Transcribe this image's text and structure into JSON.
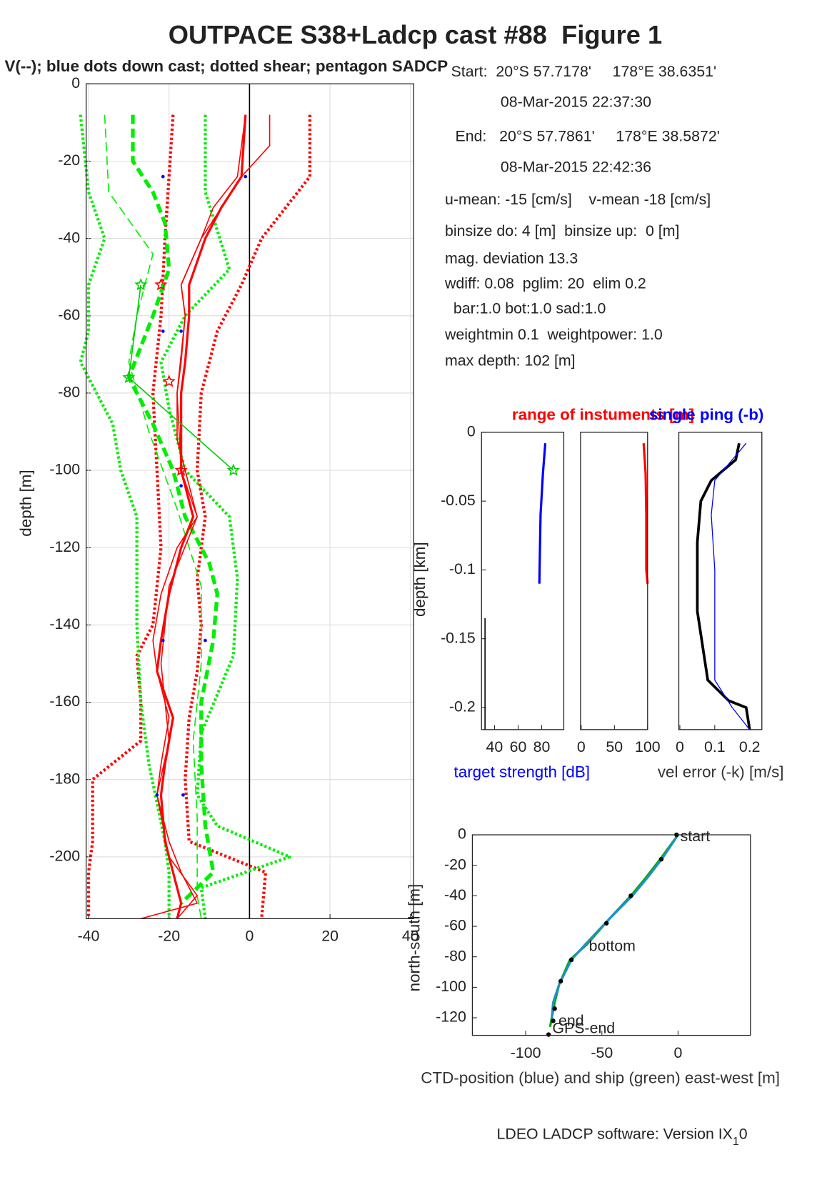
{
  "title": "OUTPACE S38+Ladcp cast #88  Figure 1",
  "subtitle": "V(--); blue dots down cast; dotted shear; pentagon SADCP",
  "info": [
    "Start:  20°S 57.7178'     178°E 38.6351'",
    "08-Mar-2015 22:37:30",
    " End:   20°S 57.7861'     178°E 38.5872'",
    "08-Mar-2015 22:42:36",
    "u-mean: -15 [cm/s]    v-mean -18 [cm/s]",
    "binsize do: 4 [m]  binsize up:  0 [m]",
    "mag. deviation 13.3",
    "wdiff: 0.08  pglim: 20  elim 0.2",
    "  bar:1.0 bot:1.0 sad:1.0",
    "weightmin 0.1  weightpower: 1.0",
    "max depth: 102 [m]"
  ],
  "footer": {
    "text": "LDEO LADCP software: Version IX",
    "sub": "1",
    "tail": "0"
  },
  "chart_data": [
    {
      "type": "line",
      "ylabel": "depth [m]",
      "xlim": [
        -40.6,
        40.8
      ],
      "ylim": [
        -216,
        0
      ],
      "xticks": [
        -40,
        -20,
        0,
        20,
        40
      ],
      "yticks": [
        0,
        -20,
        -40,
        -60,
        -80,
        -100,
        -120,
        -140,
        -160,
        -180,
        -200
      ],
      "grid": true,
      "vline": 0,
      "series": [
        {
          "color": "#ff0000",
          "style": "dotted",
          "width": 4,
          "y": [
            -8,
            -24,
            -40,
            -52,
            -64,
            -80,
            -100,
            -112,
            -128,
            -140,
            -152,
            -164,
            -180,
            -196,
            -204,
            -216
          ],
          "x": [
            15,
            15,
            3,
            -2,
            -8,
            -12,
            -13,
            -11,
            -13,
            -12,
            -13,
            -15,
            -16,
            -15,
            4,
            3
          ]
        },
        {
          "color": "#ff0000",
          "style": "dotted",
          "width": 4,
          "y": [
            -8,
            -40,
            -60,
            -80,
            -100,
            -120,
            -140,
            -148,
            -160,
            -170,
            -180,
            -196,
            -204,
            -216
          ],
          "x": [
            -19,
            -21,
            -22,
            -24,
            -23,
            -22,
            -24,
            -28,
            -27,
            -27,
            -39,
            -39,
            -40,
            -40
          ]
        },
        {
          "color": "#00ee00",
          "style": "dotted",
          "width": 4,
          "y": [
            -8,
            -28,
            -40,
            -52,
            -64,
            -72,
            -88,
            -100,
            -112,
            -124,
            -140,
            -160,
            -176,
            -196,
            -204,
            -216
          ],
          "x": [
            -42,
            -40,
            -36,
            -40,
            -40,
            -42,
            -34,
            -32,
            -28,
            -28,
            -28,
            -27,
            -25,
            -21,
            -20,
            -20
          ]
        },
        {
          "color": "#00ee00",
          "style": "dotted",
          "width": 4,
          "y": [
            -8,
            -28,
            -48,
            -60,
            -72,
            -84,
            -100,
            -112,
            -128,
            -148,
            -168,
            -184,
            -192,
            -200,
            -208,
            -216
          ],
          "x": [
            -11,
            -11,
            -5,
            -16,
            -22,
            -20,
            -16,
            -5,
            -3,
            -4,
            -12,
            -13,
            -8,
            10,
            -12,
            -11
          ]
        },
        {
          "color": "#00ee00",
          "style": "dashed",
          "width": 5,
          "y": [
            -8,
            -20,
            -28,
            -36,
            -48,
            -60,
            -76,
            -88,
            -100,
            -112,
            -124,
            -132,
            -144,
            -160,
            -176,
            -192,
            -204,
            -212
          ],
          "x": [
            -29,
            -29,
            -24,
            -21,
            -20,
            -24,
            -30,
            -24,
            -19,
            -16,
            -10,
            -8,
            -9,
            -12,
            -12,
            -11,
            -9,
            -17
          ]
        },
        {
          "color": "#00ee00",
          "style": "dashed",
          "width": 1.5,
          "y": [
            -8,
            -28,
            -44,
            -60,
            -72,
            -90,
            -110,
            -130,
            -150,
            -170,
            -190,
            -210,
            -216
          ],
          "x": [
            -36,
            -35,
            -24,
            -28,
            -30,
            -25,
            -18,
            -12,
            -12,
            -14,
            -13,
            -13,
            -12
          ]
        },
        {
          "color": "#ff0000",
          "style": "solid",
          "width": 3,
          "y": [
            -8,
            -24,
            -32,
            -40,
            -52,
            -60,
            -72,
            -80,
            -92,
            -100,
            -112,
            -120,
            -132,
            -144,
            -152,
            -164,
            -176,
            -184,
            -196,
            -204,
            -212,
            -216
          ],
          "x": [
            -1,
            -2,
            -7,
            -11,
            -15,
            -15,
            -16,
            -17,
            -17,
            -17,
            -14,
            -17,
            -20,
            -22,
            -23,
            -19,
            -21,
            -22,
            -21,
            -19,
            -17,
            -18
          ]
        },
        {
          "color": "#ff0000",
          "style": "solid",
          "width": 1.5,
          "y": [
            -8,
            -24,
            -32,
            -40,
            -52,
            -60,
            -72,
            -80,
            -92,
            -100,
            -112,
            -120,
            -132,
            -144,
            -152,
            -164,
            -176,
            -184,
            -196,
            -204,
            -212,
            -216
          ],
          "x": [
            -1,
            -3,
            -9,
            -12,
            -17,
            -16,
            -17,
            -18,
            -18,
            -16,
            -13,
            -18,
            -22,
            -24,
            -23,
            -20,
            -22,
            -23,
            -20,
            -17,
            -13,
            -27
          ]
        },
        {
          "color": "#ff0000",
          "style": "solid",
          "width": 1.5,
          "y": [
            -8,
            -16,
            -24,
            -40,
            -52,
            -60,
            -80,
            -100,
            -112,
            -130,
            -150,
            -170,
            -184,
            -200,
            -210,
            -216
          ],
          "x": [
            5,
            5,
            -2,
            -12,
            -17,
            -16,
            -18,
            -17,
            -13,
            -20,
            -22,
            -20,
            -23,
            -20,
            -13,
            -18
          ]
        },
        {
          "color": "#00cc00",
          "style": "solid",
          "width": 1.5,
          "marker": "star",
          "y": [
            -52,
            -76,
            -100
          ],
          "x": [
            -27,
            -30,
            -4
          ]
        },
        {
          "color": "#ff0000",
          "style": "none",
          "marker": "star",
          "y": [
            -52,
            -77,
            -100
          ],
          "x": [
            -22,
            -20,
            -17
          ]
        },
        {
          "color": "#0000ff",
          "style": "none",
          "marker": "dot",
          "y": [
            -24,
            -24,
            -64,
            -64,
            -104,
            -144,
            -144,
            -184,
            -184
          ],
          "x": [
            -21.5,
            -1,
            -21.5,
            -17,
            -17,
            -21.5,
            -11,
            -23,
            -16.5
          ]
        }
      ]
    },
    {
      "type": "line",
      "title": "range of instuments [m]",
      "title_color": "#ff0000",
      "ylabel": "depth [km]",
      "xlabel": "target strength [dB]",
      "xlabel_color": "#0000ff",
      "xlim": [
        29,
        98.7
      ],
      "ylim": [
        -0.216,
        0
      ],
      "xticks": [
        40,
        60,
        80
      ],
      "yticks": [
        0,
        -0.05,
        -0.1,
        -0.15,
        -0.2
      ],
      "series": [
        {
          "color": "#0000ff",
          "style": "solid",
          "width": 3,
          "y": [
            -0.008,
            -0.03,
            -0.06,
            -0.11
          ],
          "x": [
            83,
            81,
            79,
            78
          ]
        },
        {
          "color": "#000000",
          "style": "solid",
          "width": 1.5,
          "y": [
            -0.135,
            -0.216
          ],
          "x": [
            32,
            32
          ]
        }
      ]
    },
    {
      "type": "line",
      "xlim": [
        -1,
        100
      ],
      "ylim": [
        -0.216,
        0
      ],
      "xticks": [
        0,
        50,
        100
      ],
      "series": [
        {
          "color": "#ff0000",
          "style": "solid",
          "width": 3,
          "y": [
            -0.008,
            -0.03,
            -0.06,
            -0.1,
            -0.11
          ],
          "x": [
            94,
            97,
            98,
            98,
            100
          ]
        }
      ]
    },
    {
      "type": "line",
      "title": "single ping (-b)",
      "title_color": "#0000ff",
      "xlabel": "vel error (-k) [m/s]",
      "xlabel_color": "#333333",
      "xlim": [
        -0.003,
        0.235
      ],
      "ylim": [
        -0.216,
        0
      ],
      "xticks": [
        0,
        0.1,
        0.2
      ],
      "series": [
        {
          "color": "#000000",
          "style": "solid",
          "width": 3.5,
          "y": [
            -0.008,
            -0.02,
            -0.035,
            -0.05,
            -0.08,
            -0.13,
            -0.18,
            -0.195,
            -0.2,
            -0.216
          ],
          "x": [
            0.17,
            0.16,
            0.09,
            0.06,
            0.05,
            0.05,
            0.08,
            0.14,
            0.19,
            0.2
          ]
        },
        {
          "color": "#0000ff",
          "style": "solid",
          "width": 1.2,
          "y": [
            -0.008,
            -0.035,
            -0.06,
            -0.1,
            -0.13,
            -0.18,
            -0.2,
            -0.216
          ],
          "x": [
            0.19,
            0.1,
            0.09,
            0.1,
            0.1,
            0.1,
            0.15,
            0.2
          ]
        }
      ]
    },
    {
      "type": "line",
      "ylabel": "north-south [m]",
      "xlabel": "CTD-position (blue) and ship (green) east-west [m]",
      "xlabel_color": "#333333",
      "xlim": [
        -135,
        47.5
      ],
      "ylim": [
        -131.5,
        0
      ],
      "xticks": [
        -100,
        -50,
        0
      ],
      "yticks": [
        0,
        -20,
        -40,
        -60,
        -80,
        -100,
        -120
      ],
      "series": [
        {
          "color": "#00aa00",
          "style": "solid",
          "width": 3,
          "y": [
            0,
            -15,
            -28,
            -40,
            -55,
            -72,
            -82,
            -98,
            -110,
            -126
          ],
          "x": [
            0,
            -11,
            -21,
            -31,
            -45,
            -60,
            -71,
            -78,
            -81,
            -84
          ]
        },
        {
          "color": "#1e90c8",
          "style": "solid",
          "width": 3,
          "y": [
            0,
            -15,
            -28,
            -40,
            -55,
            -72,
            -82,
            -98,
            -110,
            -122
          ],
          "x": [
            0,
            -10,
            -20,
            -30,
            -45,
            -61,
            -70,
            -78,
            -82,
            -83
          ]
        },
        {
          "color": "#000000",
          "style": "none",
          "marker": "dot",
          "y": [
            0,
            -16,
            -40,
            -58,
            -82,
            -96,
            -114,
            -122,
            -131
          ],
          "x": [
            -1,
            -11,
            -31,
            -47,
            -70,
            -77,
            -81,
            -82,
            -85
          ]
        }
      ],
      "annotations": [
        {
          "text": "start",
          "x": 0,
          "y": 0
        },
        {
          "text": "bottom",
          "x": -60,
          "y": -72
        },
        {
          "text": "end",
          "x": -80,
          "y": -121
        },
        {
          "text": "GPS-end",
          "x": -84,
          "y": -126
        }
      ]
    }
  ]
}
